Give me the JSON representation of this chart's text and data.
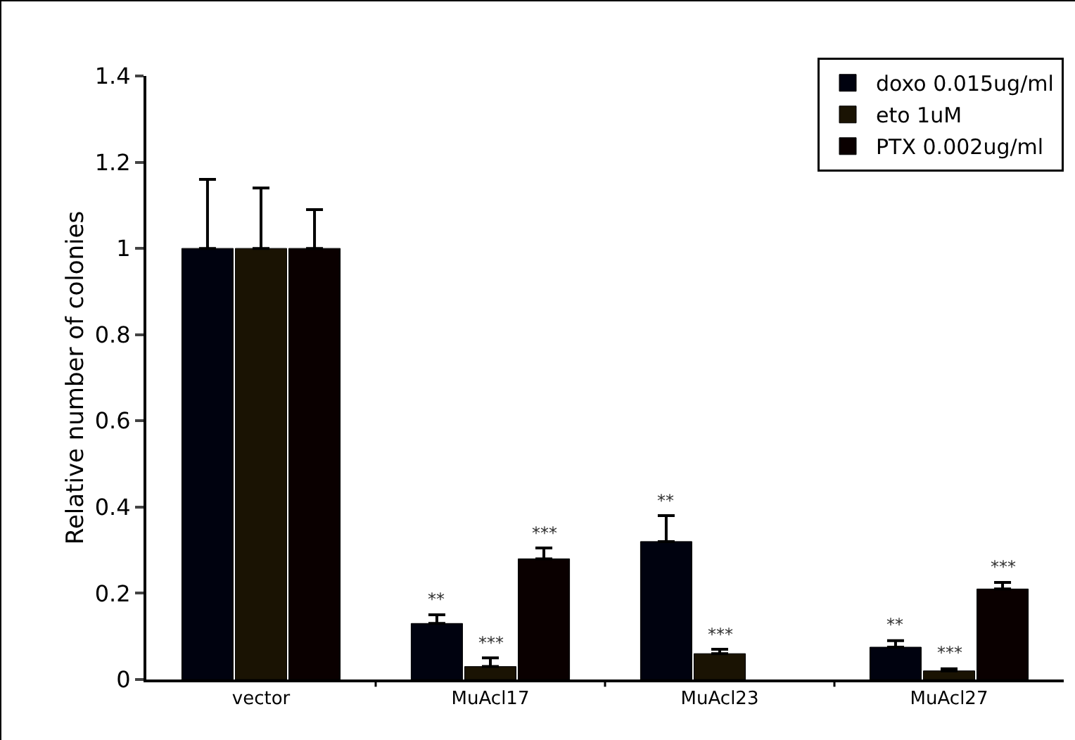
{
  "chart_data": {
    "type": "bar",
    "ylabel": "Relative number of colonies",
    "categories": [
      "vector",
      "MuAcl17",
      "MuAcl23",
      "MuAcl27"
    ],
    "series": [
      {
        "name": "doxo 0.015ug/ml",
        "color": "#00020f",
        "values": [
          1,
          0.13,
          0.32,
          0.075
        ],
        "errors": [
          [
            1,
            1.16
          ],
          [
            0.13,
            0.15
          ],
          [
            0.32,
            0.38
          ],
          [
            0.075,
            0.09
          ]
        ],
        "value_labels": [
          null,
          "**",
          "**",
          "**"
        ]
      },
      {
        "name": "eto 1uM",
        "color": "#1a1303",
        "values": [
          1,
          0.03,
          0.06,
          0.02
        ],
        "errors": [
          [
            1,
            1.14
          ],
          [
            0.03,
            0.05
          ],
          [
            0.06,
            0.07
          ],
          [
            0.02,
            0.025
          ]
        ],
        "value_labels": [
          null,
          "***",
          "***",
          "***"
        ]
      },
      {
        "name": "PTX 0.002ug/ml",
        "color": "#0a0000",
        "values": [
          1,
          0.28,
          null,
          0.21
        ],
        "errors": [
          [
            1,
            1.09
          ],
          [
            0.28,
            0.305
          ],
          null,
          [
            0.21,
            0.225
          ]
        ],
        "value_labels": [
          null,
          "***",
          null,
          "***"
        ]
      }
    ],
    "ylim": [
      0,
      1.4
    ],
    "yticks": [
      0,
      0.2,
      0.4,
      0.6,
      0.8,
      1,
      1.2,
      1.4
    ],
    "grid": false,
    "legend": "top right"
  }
}
